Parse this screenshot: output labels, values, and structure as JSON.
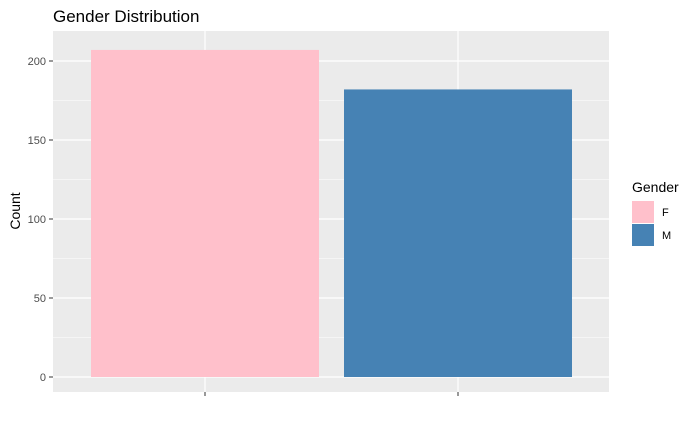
{
  "chart_data": {
    "type": "bar",
    "title": "Gender Distribution",
    "xlabel": "",
    "ylabel": "Count",
    "categories": [
      "F",
      "M"
    ],
    "values": [
      207,
      182
    ],
    "colors": {
      "F": "#ffc0cb",
      "M": "#4682b4"
    },
    "ylim": [
      0,
      215
    ],
    "yticks": [
      0,
      50,
      100,
      150,
      200
    ],
    "grid": true,
    "panel_background": "#ebebeb",
    "gridline_color": "#ffffff",
    "legend": {
      "title": "Gender",
      "placement": "right",
      "entries": [
        "F",
        "M"
      ]
    }
  }
}
